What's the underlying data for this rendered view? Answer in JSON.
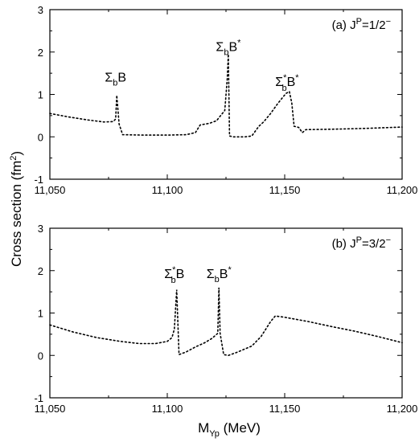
{
  "chart_data": [
    {
      "type": "line",
      "panel_label": "(a) J",
      "panel_label_sup": "P",
      "panel_label_rest": "=1/2",
      "panel_label_sup2": "−",
      "xlim": [
        11050,
        11200
      ],
      "ylim": [
        -1,
        3
      ],
      "xticks": [
        11050,
        11100,
        11150,
        11200
      ],
      "xticklabels": [
        "11,050",
        "11,100",
        "11,150",
        "11,200"
      ],
      "yticks": [
        -1,
        0,
        1,
        2,
        3
      ],
      "yticklabels": [
        "-1",
        "0",
        "1",
        "2",
        "3"
      ],
      "series": [
        {
          "style": "dotted",
          "x": [
            11050,
            11058,
            11066,
            11073,
            11077,
            11078,
            11078.5,
            11079.5,
            11081,
            11090,
            11100,
            11108,
            11112,
            11114,
            11118,
            11121,
            11123,
            11124.5,
            11125.5,
            11126,
            11126.5,
            11128,
            11133,
            11136,
            11139,
            11141,
            11144,
            11147,
            11149,
            11150.5,
            11152,
            11153,
            11154,
            11156,
            11157.5,
            11159,
            11170,
            11185,
            11200
          ],
          "y": [
            0.55,
            0.47,
            0.4,
            0.35,
            0.36,
            0.42,
            0.98,
            0.3,
            0.05,
            0.04,
            0.04,
            0.05,
            0.1,
            0.28,
            0.32,
            0.38,
            0.52,
            0.62,
            1.35,
            1.95,
            0.02,
            0.0,
            0.0,
            0.02,
            0.25,
            0.35,
            0.55,
            0.78,
            0.92,
            1.02,
            1.07,
            0.8,
            0.25,
            0.22,
            0.1,
            0.17,
            0.18,
            0.2,
            0.23
          ]
        }
      ],
      "annotations": [
        {
          "base": "Σ",
          "sub": "b",
          "sup": "",
          "rest": "B",
          "sup2": "",
          "x": 11078,
          "y": 1.3
        },
        {
          "base": "Σ",
          "sub": "b",
          "sup": "",
          "rest": "B",
          "sup2": "*",
          "x": 11126,
          "y": 2.02
        },
        {
          "base": "Σ",
          "sub": "b",
          "sup": "*",
          "rest": "B",
          "sup2": "*",
          "x": 11151,
          "y": 1.2
        }
      ]
    },
    {
      "type": "line",
      "panel_label": "(b) J",
      "panel_label_sup": "P",
      "panel_label_rest": "=3/2",
      "panel_label_sup2": "−",
      "xlim": [
        11050,
        11200
      ],
      "ylim": [
        -1,
        3
      ],
      "xticks": [
        11050,
        11100,
        11150,
        11200
      ],
      "xticklabels": [
        "11,050",
        "11,100",
        "11,150",
        "11,200"
      ],
      "yticks": [
        -1,
        0,
        1,
        2,
        3
      ],
      "yticklabels": [
        "-1",
        "0",
        "1",
        "2",
        "3"
      ],
      "series": [
        {
          "style": "dotted",
          "x": [
            11050,
            11060,
            11070,
            11080,
            11088,
            11095,
            11100,
            11102,
            11103,
            11104,
            11105,
            11108,
            11112,
            11116,
            11119,
            11121.5,
            11122,
            11122.5,
            11124,
            11126,
            11130,
            11136,
            11140,
            11144,
            11146,
            11150,
            11160,
            11170,
            11180,
            11190,
            11200
          ],
          "y": [
            0.72,
            0.55,
            0.42,
            0.33,
            0.28,
            0.28,
            0.33,
            0.42,
            0.62,
            1.55,
            0.02,
            0.08,
            0.2,
            0.3,
            0.4,
            0.52,
            1.6,
            0.52,
            0.02,
            0.0,
            0.08,
            0.22,
            0.45,
            0.8,
            0.93,
            0.9,
            0.8,
            0.68,
            0.57,
            0.44,
            0.3
          ]
        }
      ],
      "annotations": [
        {
          "base": "Σ",
          "sub": "b",
          "sup": "*",
          "rest": "B",
          "sup2": "",
          "x": 11103,
          "y": 1.82
        },
        {
          "base": "Σ",
          "sub": "b",
          "sup": "",
          "rest": "B",
          "sup2": "*",
          "x": 11122,
          "y": 1.82
        }
      ]
    }
  ],
  "ylabel": "Cross section (fm",
  "ylabel_sup": "2",
  "ylabel_end": ")",
  "xlabel_base": "M",
  "xlabel_sub": "Yp",
  "xlabel_rest": " (MeV)"
}
